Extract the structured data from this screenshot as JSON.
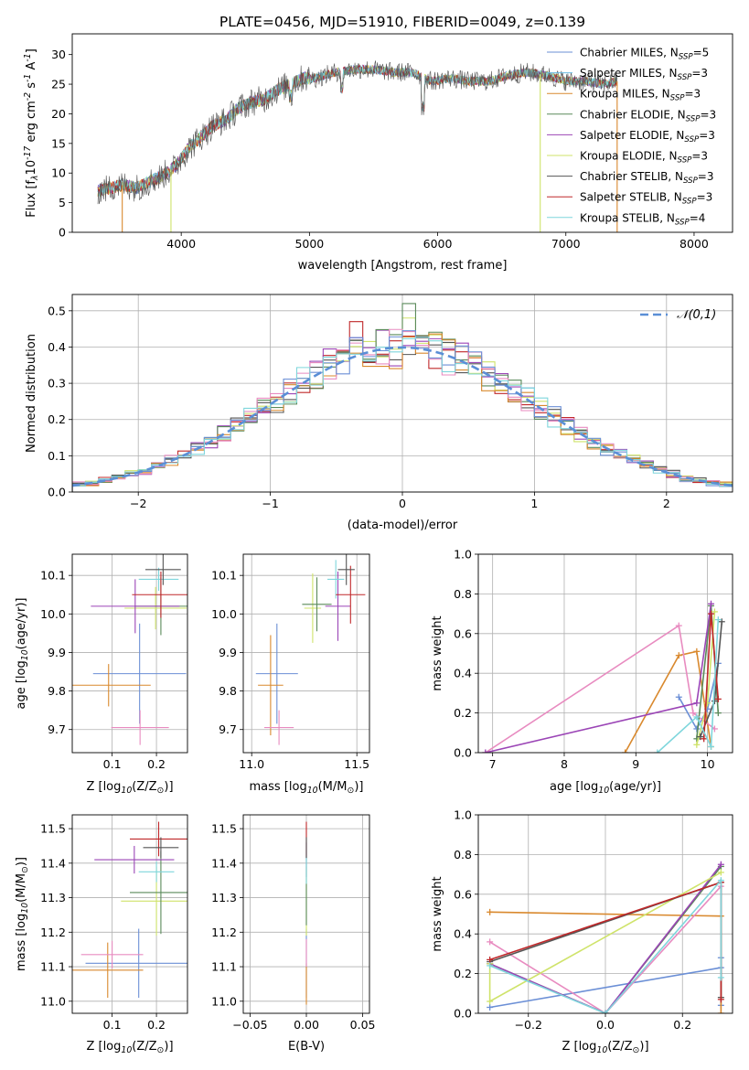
{
  "figure": {
    "title": "PLATE=0456, MJD=51910, FIBERID=0049, z=0.139"
  },
  "chart_data": [
    {
      "id": "spectrum",
      "type": "line",
      "xlabel": "wavelength [Angstrom, rest frame]",
      "ylabel": "Flux [f$_\\lambda$10$^{-17}$ erg cm$^{-2}$ s$^{-1}$ A$^{-1}$]",
      "xlim": [
        3150,
        8300
      ],
      "ylim": [
        0,
        33.5
      ],
      "xticks": [
        4000,
        5000,
        6000,
        7000,
        8000
      ],
      "yticks": [
        0,
        5,
        10,
        15,
        20,
        25,
        30
      ],
      "legend_position": "top-right",
      "series": [
        {
          "name": "Chabrier MILES, N$_{SSP}$=5",
          "color": "#6b8fd6"
        },
        {
          "name": "Salpeter MILES, N$_{SSP}$=3",
          "color": "#66b9e0"
        },
        {
          "name": "Kroupa MILES, N$_{SSP}$=3",
          "color": "#d9892e"
        },
        {
          "name": "Chabrier ELODIE, N$_{SSP}$=3",
          "color": "#5a8a5a"
        },
        {
          "name": "Salpeter ELODIE, N$_{SSP}$=3",
          "color": "#9b45b6"
        },
        {
          "name": "Kroupa ELODIE, N$_{SSP}$=3",
          "color": "#cfe36a"
        },
        {
          "name": "Chabrier STELIB, N$_{SSP}$=3",
          "color": "#555555"
        },
        {
          "name": "Salpeter STELIB, N$_{SSP}$=3",
          "color": "#c0282a"
        },
        {
          "name": "Kroupa STELIB, N$_{SSP}$=4",
          "color": "#7fd6dc"
        }
      ],
      "continuum": {
        "x": [
          3350,
          3450,
          3550,
          3650,
          3750,
          3850,
          3950,
          4050,
          4150,
          4250,
          4350,
          4450,
          4550,
          4650,
          4750,
          4850,
          4950,
          5050,
          5200,
          5350,
          5500,
          5650,
          5800,
          5950,
          6100,
          6250,
          6400,
          6550,
          6700,
          6850,
          7000,
          7150,
          7300,
          7400
        ],
        "y": [
          7,
          7.5,
          8,
          7.5,
          8.5,
          9.5,
          11,
          14,
          16,
          18,
          19,
          21,
          22,
          22.5,
          24,
          25,
          26,
          26,
          27,
          27.5,
          27.5,
          27,
          27,
          25.5,
          26,
          25.5,
          25.5,
          26.5,
          27,
          26.5,
          25.5,
          25.5,
          25,
          25.5
        ]
      },
      "drops": [
        {
          "x": 3540,
          "color": "#d9892e"
        },
        {
          "x": 3920,
          "color": "#cfe36a"
        },
        {
          "x": 6800,
          "color": "#cfe36a"
        },
        {
          "x": 7400,
          "color": "#d9892e"
        }
      ]
    },
    {
      "id": "residuals",
      "type": "histogram",
      "xlabel": "(data-model)/error",
      "ylabel": "Normed distribution",
      "xlim": [
        -2.5,
        2.5
      ],
      "ylim": [
        0,
        0.545
      ],
      "xticks": [
        -2,
        -1,
        0,
        1,
        2
      ],
      "yticks": [
        0,
        0.1,
        0.2,
        0.3,
        0.4,
        0.5
      ],
      "grid": true,
      "legend_position": "top-right",
      "bin_width": 0.1,
      "model_series": {
        "name": "$\\mathcal{N}(0,1)$",
        "color": "#5b8fd6",
        "style": "dashed",
        "mu": 0,
        "sigma": 1
      },
      "histograms": [
        {
          "color": "#c0282a",
          "peak_bins": {
            "-0.35": 0.47,
            "0.1": 0.43
          }
        },
        {
          "color": "#9b45b6"
        },
        {
          "color": "#cfe36a",
          "peak_bins": {
            "0.05": 0.48
          }
        },
        {
          "color": "#5a8a5a",
          "peak_bins": {
            "0.05": 0.52
          }
        },
        {
          "color": "#555555"
        },
        {
          "color": "#d9892e"
        },
        {
          "color": "#e88bc0"
        },
        {
          "color": "#6b8fd6"
        },
        {
          "color": "#7fd6dc"
        }
      ]
    },
    {
      "id": "age_vs_Z",
      "type": "scatter",
      "xlabel": "Z [log$_{10}$(Z/Z$_\\odot$)]",
      "ylabel": "age  [log$_{10}$(age/yr)]",
      "xlim": [
        0.01,
        0.27
      ],
      "ylim": [
        9.64,
        10.155
      ],
      "xticks": [
        0.1,
        0.2
      ],
      "yticks": [
        9.7,
        9.8,
        9.9,
        10.0,
        10.1
      ],
      "grid": true,
      "points": [
        {
          "x": 0.162,
          "y": 9.845,
          "xerr": 0.105,
          "yerr": 0.13,
          "color": "#6b8fd6"
        },
        {
          "x": 0.092,
          "y": 9.815,
          "xerr": 0.095,
          "yerr": 0.055,
          "color": "#d9892e"
        },
        {
          "x": 0.163,
          "y": 9.705,
          "xerr": 0.065,
          "yerr": 0.045,
          "color": "#e88bc0"
        },
        {
          "x": 0.198,
          "y": 10.015,
          "xerr": 0.07,
          "yerr": 0.055,
          "color": "#cfe36a"
        },
        {
          "x": 0.21,
          "y": 10.02,
          "xerr": 0.06,
          "yerr": 0.075,
          "color": "#5a8a5a"
        },
        {
          "x": 0.152,
          "y": 10.02,
          "xerr": 0.1,
          "yerr": 0.07,
          "color": "#9b45b6"
        },
        {
          "x": 0.205,
          "y": 10.09,
          "xerr": 0.045,
          "yerr": 0.03,
          "color": "#7fd6dc"
        },
        {
          "x": 0.21,
          "y": 10.05,
          "xerr": 0.065,
          "yerr": 0.06,
          "color": "#c0282a"
        },
        {
          "x": 0.215,
          "y": 10.115,
          "xerr": 0.04,
          "yerr": 0.04,
          "color": "#555555"
        }
      ]
    },
    {
      "id": "age_vs_mass",
      "type": "scatter",
      "xlabel": "mass [log$_{10}$(M/M$_\\odot$)]",
      "ylabel": "",
      "xlim": [
        10.96,
        11.56
      ],
      "ylim": [
        9.64,
        10.155
      ],
      "xticks": [
        11.0,
        11.5
      ],
      "yticks": [
        9.7,
        9.8,
        9.9,
        10.0,
        10.1
      ],
      "grid": true,
      "points": [
        {
          "x": 11.12,
          "y": 9.845,
          "xerr": 0.1,
          "yerr": 0.13,
          "color": "#6b8fd6"
        },
        {
          "x": 11.09,
          "y": 9.815,
          "xerr": 0.06,
          "yerr": 0.13,
          "color": "#d9892e"
        },
        {
          "x": 11.13,
          "y": 9.705,
          "xerr": 0.07,
          "yerr": 0.045,
          "color": "#e88bc0"
        },
        {
          "x": 11.29,
          "y": 10.015,
          "xerr": 0.04,
          "yerr": 0.09,
          "color": "#cfe36a"
        },
        {
          "x": 11.31,
          "y": 10.025,
          "xerr": 0.07,
          "yerr": 0.07,
          "color": "#5a8a5a"
        },
        {
          "x": 11.41,
          "y": 10.02,
          "xerr": 0.06,
          "yerr": 0.09,
          "color": "#9b45b6"
        },
        {
          "x": 11.4,
          "y": 10.09,
          "xerr": 0.04,
          "yerr": 0.05,
          "color": "#7fd6dc"
        },
        {
          "x": 11.47,
          "y": 10.05,
          "xerr": 0.07,
          "yerr": 0.075,
          "color": "#c0282a"
        },
        {
          "x": 11.45,
          "y": 10.115,
          "xerr": 0.04,
          "yerr": 0.04,
          "color": "#555555"
        }
      ]
    },
    {
      "id": "weight_vs_age",
      "type": "line",
      "xlabel": "age  [log$_{10}$(age/yr)]",
      "ylabel": "mass weight",
      "xlim": [
        6.8,
        10.35
      ],
      "ylim": [
        0,
        1.0
      ],
      "xticks": [
        7,
        8,
        9,
        10
      ],
      "yticks": [
        0.0,
        0.2,
        0.4,
        0.6,
        0.8,
        1.0
      ],
      "grid": true,
      "series": [
        {
          "color": "#6b8fd6",
          "x": [
            9.6,
            9.85,
            10.0,
            10.15
          ],
          "y": [
            0.28,
            0.12,
            0.22,
            0.45
          ]
        },
        {
          "color": "#d9892e",
          "x": [
            8.85,
            9.6,
            9.85,
            10.05
          ],
          "y": [
            0.0,
            0.49,
            0.51,
            0.03
          ]
        },
        {
          "color": "#e88bc0",
          "x": [
            6.9,
            9.6,
            9.8,
            10.1
          ],
          "y": [
            0.0,
            0.64,
            0.2,
            0.12
          ]
        },
        {
          "color": "#5a8a5a",
          "x": [
            9.85,
            10.05,
            10.15
          ],
          "y": [
            0.07,
            0.74,
            0.2
          ]
        },
        {
          "color": "#9b45b6",
          "x": [
            6.9,
            9.85,
            10.05
          ],
          "y": [
            0.0,
            0.25,
            0.75
          ]
        },
        {
          "color": "#cfe36a",
          "x": [
            9.85,
            10.0,
            10.1
          ],
          "y": [
            0.04,
            0.25,
            0.71
          ]
        },
        {
          "color": "#555555",
          "x": [
            9.9,
            10.1,
            10.2
          ],
          "y": [
            0.08,
            0.26,
            0.66
          ]
        },
        {
          "color": "#c0282a",
          "x": [
            9.95,
            10.05,
            10.15
          ],
          "y": [
            0.07,
            0.7,
            0.27
          ]
        },
        {
          "color": "#7fd6dc",
          "x": [
            9.3,
            9.85,
            10.05,
            10.15
          ],
          "y": [
            0.0,
            0.18,
            0.03,
            0.67
          ]
        }
      ]
    },
    {
      "id": "mass_vs_Z",
      "type": "scatter",
      "xlabel": "Z [log$_{10}$(Z/Z$_\\odot$)]",
      "ylabel": "mass [log$_{10}$(M/M$_\\odot$)]",
      "xlim": [
        0.01,
        0.27
      ],
      "ylim": [
        10.965,
        11.54
      ],
      "xticks": [
        0.1,
        0.2
      ],
      "yticks": [
        11.0,
        11.1,
        11.2,
        11.3,
        11.4,
        11.5
      ],
      "grid": true,
      "points": [
        {
          "x": 0.16,
          "y": 11.11,
          "xerr": 0.12,
          "yerr": 0.1,
          "color": "#6b8fd6"
        },
        {
          "x": 0.09,
          "y": 11.09,
          "xerr": 0.08,
          "yerr": 0.08,
          "color": "#d9892e"
        },
        {
          "x": 0.1,
          "y": 11.135,
          "xerr": 0.07,
          "yerr": 0.04,
          "color": "#e88bc0"
        },
        {
          "x": 0.2,
          "y": 11.29,
          "xerr": 0.08,
          "yerr": 0.1,
          "color": "#cfe36a"
        },
        {
          "x": 0.21,
          "y": 11.315,
          "xerr": 0.07,
          "yerr": 0.12,
          "color": "#5a8a5a"
        },
        {
          "x": 0.15,
          "y": 11.41,
          "xerr": 0.09,
          "yerr": 0.04,
          "color": "#9b45b6"
        },
        {
          "x": 0.2,
          "y": 11.375,
          "xerr": 0.04,
          "yerr": 0.03,
          "color": "#7fd6dc"
        },
        {
          "x": 0.205,
          "y": 11.47,
          "xerr": 0.065,
          "yerr": 0.05,
          "color": "#c0282a"
        },
        {
          "x": 0.21,
          "y": 11.445,
          "xerr": 0.04,
          "yerr": 0.03,
          "color": "#555555"
        }
      ]
    },
    {
      "id": "mass_vs_ebv",
      "type": "scatter",
      "xlabel": "E(B-V)",
      "ylabel": "",
      "xlim": [
        -0.056,
        0.056
      ],
      "ylim": [
        10.965,
        11.54
      ],
      "xticks": [
        -0.05,
        0.0,
        0.05
      ],
      "yticks": [
        11.0,
        11.1,
        11.2,
        11.3,
        11.4,
        11.5
      ],
      "grid": true,
      "points": [
        {
          "x": 0.0,
          "y": 11.11,
          "xerr": 0.0,
          "yerr": 0.1,
          "color": "#6b8fd6"
        },
        {
          "x": 0.0,
          "y": 11.05,
          "xerr": 0.0,
          "yerr": 0.06,
          "color": "#d9892e"
        },
        {
          "x": 0.0,
          "y": 11.14,
          "xerr": 0.0,
          "yerr": 0.04,
          "color": "#e88bc0"
        },
        {
          "x": 0.0,
          "y": 11.29,
          "xerr": 0.0,
          "yerr": 0.1,
          "color": "#cfe36a"
        },
        {
          "x": 0.0,
          "y": 11.32,
          "xerr": 0.0,
          "yerr": 0.1,
          "color": "#5a8a5a"
        },
        {
          "x": 0.0,
          "y": 11.41,
          "xerr": 0.0,
          "yerr": 0.05,
          "color": "#9b45b6"
        },
        {
          "x": 0.0,
          "y": 11.38,
          "xerr": 0.0,
          "yerr": 0.04,
          "color": "#7fd6dc"
        },
        {
          "x": 0.0,
          "y": 11.47,
          "xerr": 0.0,
          "yerr": 0.05,
          "color": "#c0282a"
        },
        {
          "x": 0.0,
          "y": 11.445,
          "xerr": 0.0,
          "yerr": 0.03,
          "color": "#555555"
        }
      ]
    },
    {
      "id": "weight_vs_Z",
      "type": "line",
      "xlabel": "Z [log$_{10}$(Z/Z$_\\odot$)]",
      "ylabel": "mass weight",
      "xlim": [
        -0.33,
        0.33
      ],
      "ylim": [
        0,
        1.0
      ],
      "xticks": [
        -0.2,
        0.0,
        0.2
      ],
      "yticks": [
        0.0,
        0.2,
        0.4,
        0.6,
        0.8,
        1.0
      ],
      "grid": true,
      "series": [
        {
          "color": "#6b8fd6",
          "x": [
            -0.3,
            0.3,
            0.3,
            0.3
          ],
          "y": [
            0.03,
            0.23,
            0.28,
            0.04
          ]
        },
        {
          "color": "#d9892e",
          "x": [
            -0.3,
            0.3,
            0.3
          ],
          "y": [
            0.51,
            0.49,
            0.0
          ]
        },
        {
          "color": "#e88bc0",
          "x": [
            -0.3,
            0.0,
            0.3
          ],
          "y": [
            0.36,
            0.0,
            0.64
          ]
        },
        {
          "color": "#5a8a5a",
          "x": [
            -0.3,
            0.0,
            0.3
          ],
          "y": [
            0.25,
            0.0,
            0.74
          ]
        },
        {
          "color": "#9b45b6",
          "x": [
            -0.3,
            0.0,
            0.3
          ],
          "y": [
            0.25,
            0.0,
            0.75
          ]
        },
        {
          "color": "#cfe36a",
          "x": [
            -0.3,
            -0.3,
            0.3
          ],
          "y": [
            0.25,
            0.06,
            0.71
          ]
        },
        {
          "color": "#555555",
          "x": [
            -0.3,
            0.3,
            0.3
          ],
          "y": [
            0.26,
            0.66,
            0.08
          ]
        },
        {
          "color": "#c0282a",
          "x": [
            -0.3,
            0.3,
            0.3
          ],
          "y": [
            0.27,
            0.66,
            0.07
          ]
        },
        {
          "color": "#7fd6dc",
          "x": [
            -0.3,
            0.0,
            0.3,
            0.3
          ],
          "y": [
            0.24,
            0.0,
            0.67,
            0.18
          ]
        }
      ]
    }
  ]
}
